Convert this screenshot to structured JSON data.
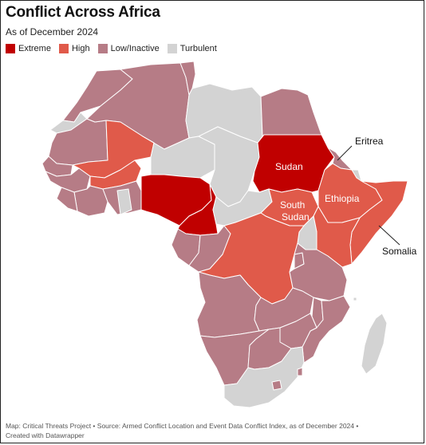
{
  "title": "Conflict Across Africa",
  "subtitle": "As of December 2024",
  "legend": [
    {
      "label": "Extreme",
      "color": "#c00000"
    },
    {
      "label": "High",
      "color": "#e05a4a"
    },
    {
      "label": "Low/Inactive",
      "color": "#b67c86"
    },
    {
      "label": "Turbulent",
      "color": "#d3d3d3"
    }
  ],
  "labels": {
    "sudan": "Sudan",
    "south_sudan_1": "South",
    "south_sudan_2": "Sudan",
    "ethiopia": "Ethiopia",
    "eritrea": "Eritrea",
    "somalia": "Somalia"
  },
  "footer": {
    "line1": "Map: Critical Threats Project • Source: Armed Conflict Location and Event Data Conflict Index, as of December 2024 •",
    "line2": "Created with Datawrapper"
  }
}
